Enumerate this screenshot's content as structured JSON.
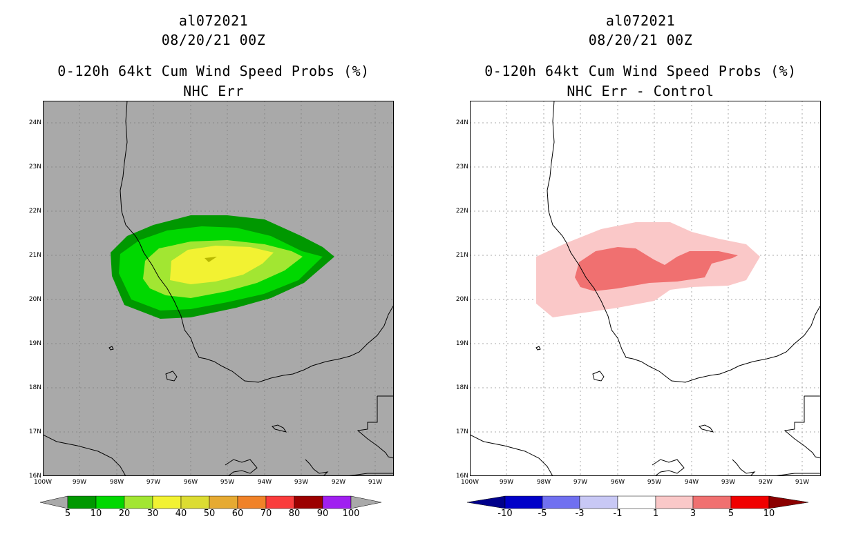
{
  "left_panel": {
    "storm_id": "al072021",
    "datetime": "08/20/21 00Z",
    "product": "0-120h 64kt Cum Wind Speed Probs (%)",
    "subtitle": "NHC Err",
    "background_color": "#a9a9a9",
    "colorbar_labels": [
      "5",
      "10",
      "20",
      "30",
      "40",
      "50",
      "60",
      "70",
      "80",
      "90",
      "100"
    ],
    "colorbar_colors": [
      "#009800",
      "#00d800",
      "#a2e632",
      "#f2f232",
      "#dcdc32",
      "#e6aa32",
      "#f08228",
      "#fa3c3c",
      "#9c0000",
      "#a020f0"
    ],
    "colorbar_end_color": "#a9a9a9"
  },
  "right_panel": {
    "storm_id": "al072021",
    "datetime": "08/20/21 00Z",
    "product": "0-120h 64kt Cum Wind Speed Probs (%)",
    "subtitle": "NHC Err - Control",
    "background_color": "#ffffff",
    "colorbar_labels": [
      "-10",
      "-5",
      "-3",
      "-1",
      "1",
      "3",
      "5",
      "10"
    ],
    "colorbar_colors": [
      "#0000c8",
      "#7070f0",
      "#c8c8f5",
      "#ffffff",
      "#fac8c8",
      "#f07070",
      "#f00000"
    ],
    "colorbar_low_end_color": "#00008b",
    "colorbar_high_end_color": "#8b0000"
  },
  "axes": {
    "lat_labels": [
      "24N",
      "23N",
      "22N",
      "21N",
      "20N",
      "19N",
      "18N",
      "17N",
      "16N"
    ],
    "lon_labels": [
      "100W",
      "99W",
      "98W",
      "97W",
      "96W",
      "95W",
      "94W",
      "93W",
      "92W",
      "91W"
    ],
    "lat_range": [
      16,
      24.5
    ],
    "lon_range": [
      -100,
      -90.5
    ]
  }
}
